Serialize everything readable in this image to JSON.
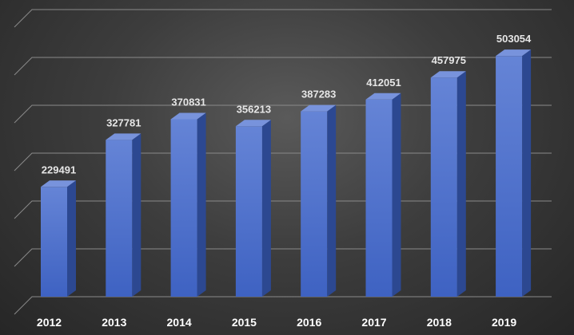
{
  "chart_data": {
    "type": "bar",
    "style": "3d-column",
    "categories": [
      "2012",
      "2013",
      "2014",
      "2015",
      "2016",
      "2017",
      "2018",
      "2019"
    ],
    "values": [
      229491,
      327781,
      370831,
      356213,
      387283,
      412051,
      457975,
      503054
    ],
    "value_labels": [
      "229491",
      "327781",
      "370831",
      "356213",
      "387283",
      "412051",
      "457975",
      "503054"
    ],
    "title": "",
    "xlabel": "",
    "ylabel": "",
    "ylim": [
      0,
      600000
    ],
    "gridlines": true,
    "legend": "none",
    "colors": {
      "bar_front_top": "#6584d6",
      "bar_front_bottom": "#3e62c2",
      "bar_side": "#2c4891",
      "bar_top": "#7893dc",
      "background": "#3d3d3d",
      "grid": "#8a8a8a"
    }
  }
}
